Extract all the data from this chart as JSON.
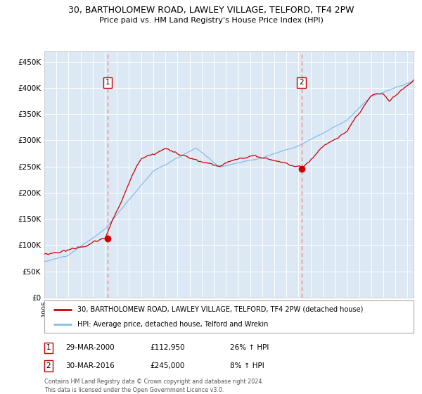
{
  "title_line1": "30, BARTHOLOMEW ROAD, LAWLEY VILLAGE, TELFORD, TF4 2PW",
  "title_line2": "Price paid vs. HM Land Registry's House Price Index (HPI)",
  "ylim": [
    0,
    470000
  ],
  "yticks": [
    0,
    50000,
    100000,
    150000,
    200000,
    250000,
    300000,
    350000,
    400000,
    450000
  ],
  "ytick_labels": [
    "£0",
    "£50K",
    "£100K",
    "£150K",
    "£200K",
    "£250K",
    "£300K",
    "£350K",
    "£400K",
    "£450K"
  ],
  "plot_bg_color": "#dce9f5",
  "outer_bg_color": "#ffffff",
  "red_line_color": "#cc0000",
  "blue_line_color": "#88bbee",
  "marker_color": "#cc0000",
  "dashed_line_color": "#ee8888",
  "event1_year": 2000.24,
  "event1_price": 112950,
  "event2_year": 2016.24,
  "event2_price": 245000,
  "legend_entries": [
    "30, BARTHOLOMEW ROAD, LAWLEY VILLAGE, TELFORD, TF4 2PW (detached house)",
    "HPI: Average price, detached house, Telford and Wrekin"
  ],
  "legend_colors": [
    "#cc0000",
    "#88bbee"
  ],
  "table_entries": [
    {
      "num": "1",
      "date": "29-MAR-2000",
      "price": "£112,950",
      "hpi": "26% ↑ HPI"
    },
    {
      "num": "2",
      "date": "30-MAR-2016",
      "price": "£245,000",
      "hpi": "8% ↑ HPI"
    }
  ],
  "footer": "Contains HM Land Registry data © Crown copyright and database right 2024.\nThis data is licensed under the Open Government Licence v3.0.",
  "xstart": 1995,
  "xend": 2025.5
}
